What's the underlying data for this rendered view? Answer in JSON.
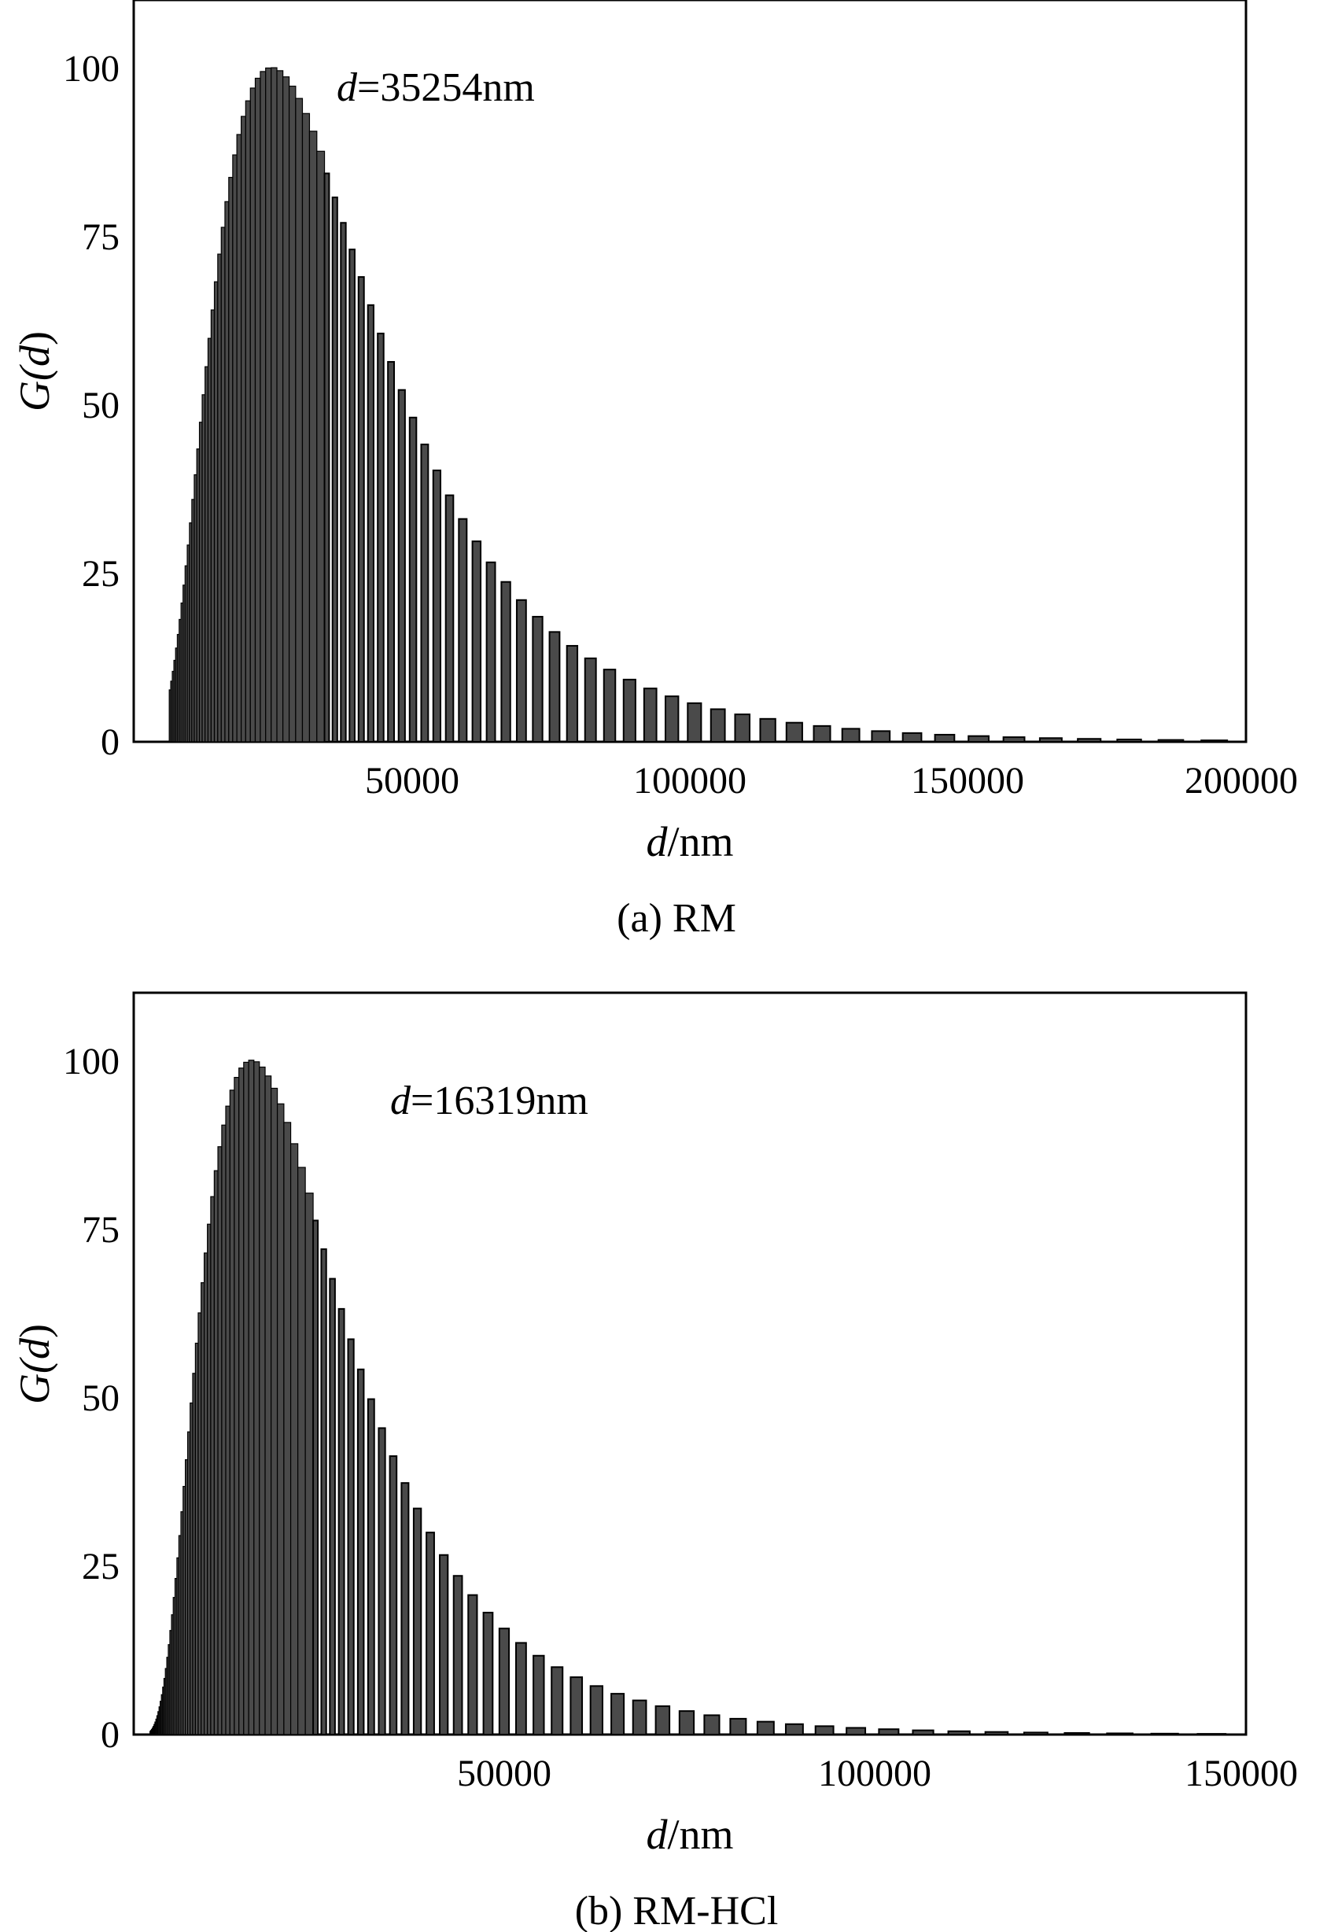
{
  "colors": {
    "bar_fill": "#4a4a4a",
    "bar_stroke": "#000000",
    "axis": "#000000",
    "background": "#ffffff"
  },
  "chart_data": [
    {
      "type": "bar",
      "caption": "(a) RM",
      "ylabel": "G(d)",
      "ylabel_parts": [
        "G(",
        "d",
        ")"
      ],
      "xlabel": "d/nm",
      "xlabel_parts": [
        "d",
        "/nm"
      ],
      "annotation": "d=35254nm",
      "annotation_parts": [
        "d",
        "=35254nm"
      ],
      "xlim": [
        0,
        200000
      ],
      "ylim": [
        0,
        110
      ],
      "yticks": [
        0,
        25,
        50,
        75,
        100
      ],
      "xticks": [
        50000,
        100000,
        150000,
        200000
      ],
      "ytick_labels": [
        "0",
        "25",
        "50",
        "75",
        "100"
      ],
      "xtick_labels": [
        "50000",
        "100000",
        "150000",
        "200000"
      ],
      "grid": false,
      "legend": "none",
      "distribution": {
        "d_mean": 35254,
        "mode": 24800,
        "sigma": 0.59,
        "peak": 100,
        "bins": 84,
        "log_spacing": 0.041
      }
    },
    {
      "type": "bar",
      "caption": "(b) RM-HCl",
      "ylabel": "G(d)",
      "ylabel_parts": [
        "G(",
        "d",
        ")"
      ],
      "xlabel": "d/nm",
      "xlabel_parts": [
        "d",
        "/nm"
      ],
      "annotation": "d=16319nm",
      "annotation_parts": [
        "d",
        "=16319nm"
      ],
      "xlim": [
        0,
        150000
      ],
      "ylim": [
        0,
        110
      ],
      "yticks": [
        0,
        25,
        50,
        75,
        100
      ],
      "xticks": [
        50000,
        100000,
        150000
      ],
      "ytick_labels": [
        "0",
        "25",
        "50",
        "75",
        "100"
      ],
      "xtick_labels": [
        "50000",
        "100000",
        "150000"
      ],
      "grid": false,
      "legend": "none",
      "distribution": {
        "d_mean": 16319,
        "mode": 15900,
        "sigma": 0.6,
        "peak": 100,
        "bins": 95,
        "log_spacing": 0.0445
      }
    }
  ]
}
